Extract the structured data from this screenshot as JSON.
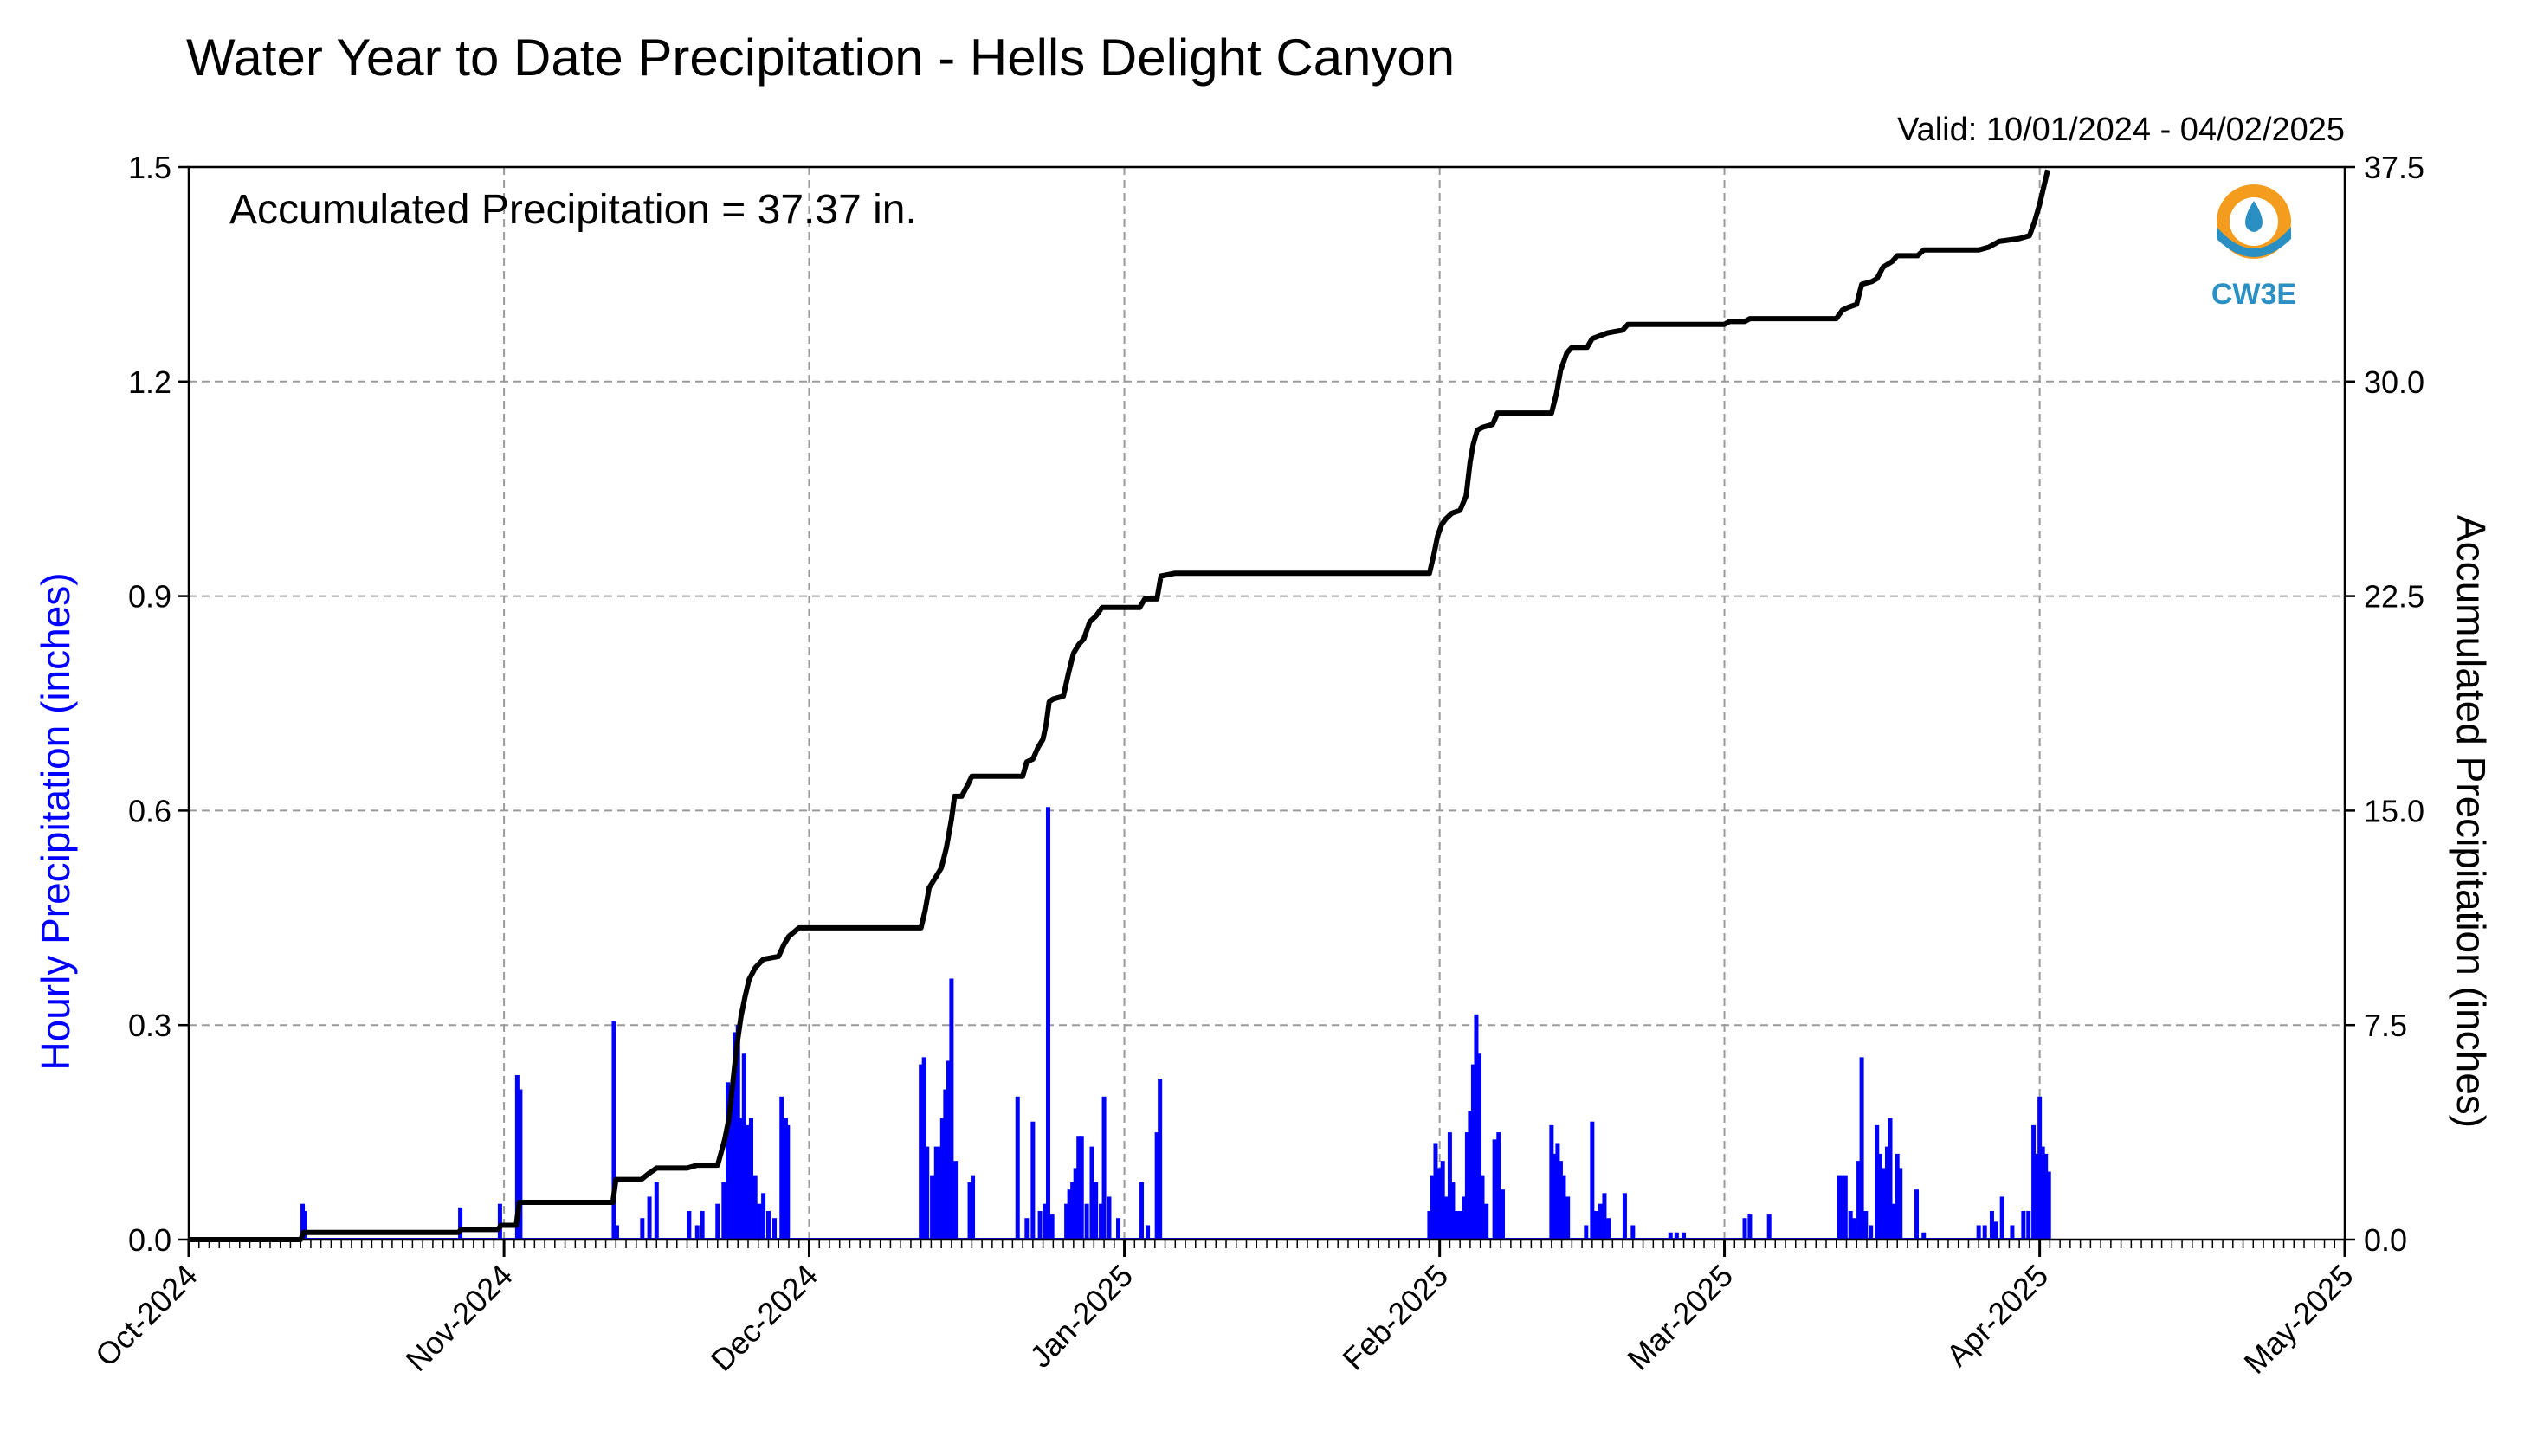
{
  "chart_data": {
    "type": "bar",
    "title": "Water Year to Date Precipitation - Hells Delight Canyon",
    "valid_label": "Valid: 10/01/2024 - 04/02/2025",
    "annotation": "Accumulated Precipitation = 37.37 in.",
    "logo_text": "CW3E",
    "ylabel_left": "Hourly Precipitation (inches)",
    "ylabel_right": "Accumulated Precipitation (inches)",
    "ylim_left": [
      0,
      1.5
    ],
    "ylim_right": [
      0,
      37.5
    ],
    "yticks_left": [
      "0.0",
      "0.3",
      "0.6",
      "0.9",
      "1.2",
      "1.5"
    ],
    "yticks_right": [
      "0.0",
      "7.5",
      "15.0",
      "22.5",
      "30.0",
      "37.5"
    ],
    "xlim_days": [
      0,
      212
    ],
    "xticks": [
      {
        "label": "Oct-2024",
        "day": 0
      },
      {
        "label": "Nov-2024",
        "day": 31
      },
      {
        "label": "Dec-2024",
        "day": 61
      },
      {
        "label": "Jan-2025",
        "day": 92
      },
      {
        "label": "Feb-2025",
        "day": 123
      },
      {
        "label": "Mar-2025",
        "day": 151
      },
      {
        "label": "Apr-2025",
        "day": 182
      },
      {
        "label": "May-2025",
        "day": 212
      }
    ],
    "grid": true,
    "colors": {
      "hourly": "#0000ff",
      "accumulated": "#000000",
      "grid": "#9a9a9a",
      "logo_orange": "#f39c1e",
      "logo_blue": "#2a8fc2"
    },
    "series": [
      {
        "name": "Hourly Precipitation (inches)",
        "kind": "bar",
        "points": [
          [
            11.2,
            0.05
          ],
          [
            11.4,
            0.04
          ],
          [
            26.7,
            0.045
          ],
          [
            30.6,
            0.05
          ],
          [
            32.3,
            0.23
          ],
          [
            32.6,
            0.21
          ],
          [
            41.8,
            0.305
          ],
          [
            42.1,
            0.02
          ],
          [
            44.6,
            0.03
          ],
          [
            45.3,
            0.06
          ],
          [
            46.0,
            0.08
          ],
          [
            49.2,
            0.04
          ],
          [
            50.0,
            0.02
          ],
          [
            50.5,
            0.04
          ],
          [
            52.0,
            0.05
          ],
          [
            52.6,
            0.08
          ],
          [
            53.0,
            0.22
          ],
          [
            53.3,
            0.21
          ],
          [
            53.7,
            0.29
          ],
          [
            54.0,
            0.3
          ],
          [
            54.3,
            0.17
          ],
          [
            54.6,
            0.26
          ],
          [
            54.9,
            0.16
          ],
          [
            55.3,
            0.17
          ],
          [
            55.7,
            0.09
          ],
          [
            56.1,
            0.05
          ],
          [
            56.5,
            0.065
          ],
          [
            57.0,
            0.04
          ],
          [
            57.6,
            0.03
          ],
          [
            58.3,
            0.2
          ],
          [
            58.7,
            0.17
          ],
          [
            58.9,
            0.16
          ],
          [
            72.0,
            0.245
          ],
          [
            72.3,
            0.255
          ],
          [
            72.6,
            0.13
          ],
          [
            73.1,
            0.09
          ],
          [
            73.5,
            0.13
          ],
          [
            73.9,
            0.13
          ],
          [
            74.1,
            0.17
          ],
          [
            74.4,
            0.21
          ],
          [
            74.7,
            0.25
          ],
          [
            75.0,
            0.365
          ],
          [
            75.4,
            0.11
          ],
          [
            76.8,
            0.08
          ],
          [
            77.1,
            0.09
          ],
          [
            81.5,
            0.2
          ],
          [
            82.4,
            0.03
          ],
          [
            83.0,
            0.165
          ],
          [
            83.7,
            0.04
          ],
          [
            84.2,
            0.05
          ],
          [
            84.5,
            0.605
          ],
          [
            84.9,
            0.035
          ],
          [
            86.3,
            0.05
          ],
          [
            86.6,
            0.07
          ],
          [
            86.9,
            0.08
          ],
          [
            87.2,
            0.1
          ],
          [
            87.5,
            0.145
          ],
          [
            87.8,
            0.145
          ],
          [
            88.3,
            0.05
          ],
          [
            88.8,
            0.13
          ],
          [
            89.2,
            0.08
          ],
          [
            89.7,
            0.05
          ],
          [
            90.0,
            0.2
          ],
          [
            90.5,
            0.06
          ],
          [
            91.4,
            0.03
          ],
          [
            93.7,
            0.08
          ],
          [
            94.3,
            0.02
          ],
          [
            95.2,
            0.15
          ],
          [
            95.5,
            0.225
          ],
          [
            122.0,
            0.04
          ],
          [
            122.3,
            0.09
          ],
          [
            122.6,
            0.135
          ],
          [
            122.9,
            0.1
          ],
          [
            123.3,
            0.11
          ],
          [
            123.6,
            0.06
          ],
          [
            124.0,
            0.15
          ],
          [
            124.3,
            0.08
          ],
          [
            124.6,
            0.04
          ],
          [
            125.0,
            0.04
          ],
          [
            125.4,
            0.06
          ],
          [
            125.7,
            0.15
          ],
          [
            126.0,
            0.18
          ],
          [
            126.3,
            0.245
          ],
          [
            126.6,
            0.315
          ],
          [
            126.9,
            0.26
          ],
          [
            127.2,
            0.09
          ],
          [
            127.6,
            0.05
          ],
          [
            128.4,
            0.14
          ],
          [
            128.8,
            0.15
          ],
          [
            129.2,
            0.07
          ],
          [
            134.0,
            0.16
          ],
          [
            134.3,
            0.12
          ],
          [
            134.6,
            0.135
          ],
          [
            134.9,
            0.11
          ],
          [
            135.2,
            0.09
          ],
          [
            135.6,
            0.06
          ],
          [
            137.4,
            0.02
          ],
          [
            138.0,
            0.165
          ],
          [
            138.4,
            0.04
          ],
          [
            138.8,
            0.05
          ],
          [
            139.2,
            0.065
          ],
          [
            139.6,
            0.03
          ],
          [
            141.2,
            0.065
          ],
          [
            142.0,
            0.02
          ],
          [
            145.7,
            0.01
          ],
          [
            146.3,
            0.01
          ],
          [
            147.0,
            0.01
          ],
          [
            153.0,
            0.03
          ],
          [
            153.5,
            0.035
          ],
          [
            155.4,
            0.035
          ],
          [
            162.3,
            0.09
          ],
          [
            162.6,
            0.09
          ],
          [
            162.9,
            0.09
          ],
          [
            163.4,
            0.04
          ],
          [
            163.8,
            0.03
          ],
          [
            164.2,
            0.11
          ],
          [
            164.5,
            0.255
          ],
          [
            164.9,
            0.04
          ],
          [
            165.4,
            0.02
          ],
          [
            166.0,
            0.16
          ],
          [
            166.3,
            0.12
          ],
          [
            166.6,
            0.1
          ],
          [
            167.0,
            0.13
          ],
          [
            167.3,
            0.17
          ],
          [
            167.7,
            0.05
          ],
          [
            168.0,
            0.12
          ],
          [
            168.3,
            0.1
          ],
          [
            169.9,
            0.07
          ],
          [
            170.6,
            0.01
          ],
          [
            176.0,
            0.02
          ],
          [
            176.6,
            0.02
          ],
          [
            177.3,
            0.04
          ],
          [
            177.7,
            0.025
          ],
          [
            178.3,
            0.06
          ],
          [
            179.3,
            0.02
          ],
          [
            180.4,
            0.04
          ],
          [
            180.9,
            0.04
          ],
          [
            181.4,
            0.16
          ],
          [
            181.8,
            0.12
          ],
          [
            182.0,
            0.2
          ],
          [
            182.3,
            0.13
          ],
          [
            182.6,
            0.12
          ],
          [
            182.9,
            0.095
          ]
        ]
      },
      {
        "name": "Accumulated Precipitation (inches)",
        "kind": "line",
        "points": [
          [
            0,
            0
          ],
          [
            11.0,
            0
          ],
          [
            11.3,
            0.25
          ],
          [
            26.5,
            0.25
          ],
          [
            26.8,
            0.35
          ],
          [
            30.4,
            0.35
          ],
          [
            30.7,
            0.5
          ],
          [
            32.2,
            0.5
          ],
          [
            32.5,
            1.3
          ],
          [
            41.7,
            1.3
          ],
          [
            42.0,
            2.1
          ],
          [
            44.5,
            2.1
          ],
          [
            45.2,
            2.3
          ],
          [
            46.0,
            2.5
          ],
          [
            49.0,
            2.5
          ],
          [
            50.0,
            2.6
          ],
          [
            52.0,
            2.6
          ],
          [
            52.7,
            3.5
          ],
          [
            53.1,
            4.2
          ],
          [
            53.5,
            5.5
          ],
          [
            53.9,
            6.8
          ],
          [
            54.3,
            7.8
          ],
          [
            54.7,
            8.5
          ],
          [
            55.1,
            9.1
          ],
          [
            55.7,
            9.5
          ],
          [
            56.5,
            9.8
          ],
          [
            58.0,
            9.9
          ],
          [
            58.5,
            10.3
          ],
          [
            59.0,
            10.6
          ],
          [
            60.0,
            10.9
          ],
          [
            72.0,
            10.9
          ],
          [
            72.4,
            11.5
          ],
          [
            72.8,
            12.3
          ],
          [
            73.5,
            12.7
          ],
          [
            74.0,
            13.0
          ],
          [
            74.5,
            13.7
          ],
          [
            75.0,
            14.7
          ],
          [
            75.3,
            15.5
          ],
          [
            76.0,
            15.5
          ],
          [
            76.6,
            15.9
          ],
          [
            77.0,
            16.2
          ],
          [
            82.0,
            16.2
          ],
          [
            82.4,
            16.7
          ],
          [
            83.0,
            16.8
          ],
          [
            83.5,
            17.2
          ],
          [
            84.0,
            17.5
          ],
          [
            84.3,
            18.0
          ],
          [
            84.6,
            18.8
          ],
          [
            85.0,
            18.9
          ],
          [
            86.0,
            19.0
          ],
          [
            86.5,
            19.8
          ],
          [
            87.0,
            20.5
          ],
          [
            87.5,
            20.8
          ],
          [
            88.0,
            21.0
          ],
          [
            88.6,
            21.6
          ],
          [
            89.2,
            21.8
          ],
          [
            89.8,
            22.1
          ],
          [
            93.5,
            22.1
          ],
          [
            94.0,
            22.4
          ],
          [
            95.2,
            22.4
          ],
          [
            95.6,
            23.2
          ],
          [
            97.0,
            23.3
          ],
          [
            122.0,
            23.3
          ],
          [
            122.4,
            23.9
          ],
          [
            122.8,
            24.6
          ],
          [
            123.2,
            25.0
          ],
          [
            123.6,
            25.2
          ],
          [
            124.2,
            25.4
          ],
          [
            125.0,
            25.5
          ],
          [
            125.6,
            26.0
          ],
          [
            126.0,
            27.2
          ],
          [
            126.3,
            27.8
          ],
          [
            126.7,
            28.3
          ],
          [
            127.2,
            28.4
          ],
          [
            128.2,
            28.5
          ],
          [
            128.7,
            28.9
          ],
          [
            134.0,
            28.9
          ],
          [
            134.5,
            29.6
          ],
          [
            134.9,
            30.4
          ],
          [
            135.5,
            31.0
          ],
          [
            136.0,
            31.2
          ],
          [
            137.5,
            31.2
          ],
          [
            138.0,
            31.5
          ],
          [
            139.5,
            31.7
          ],
          [
            141.0,
            31.8
          ],
          [
            141.5,
            32.0
          ],
          [
            151.0,
            32.0
          ],
          [
            151.5,
            32.1
          ],
          [
            153.0,
            32.1
          ],
          [
            153.5,
            32.2
          ],
          [
            162.0,
            32.2
          ],
          [
            162.6,
            32.5
          ],
          [
            163.2,
            32.6
          ],
          [
            164.0,
            32.7
          ],
          [
            164.5,
            33.4
          ],
          [
            165.5,
            33.5
          ],
          [
            166.0,
            33.6
          ],
          [
            166.6,
            34.0
          ],
          [
            167.5,
            34.2
          ],
          [
            168.0,
            34.4
          ],
          [
            170.0,
            34.4
          ],
          [
            170.6,
            34.6
          ],
          [
            176.0,
            34.6
          ],
          [
            177.0,
            34.7
          ],
          [
            178.0,
            34.9
          ],
          [
            180.0,
            35.0
          ],
          [
            181.0,
            35.1
          ],
          [
            181.5,
            35.6
          ],
          [
            182.0,
            36.2
          ],
          [
            182.4,
            36.8
          ],
          [
            182.8,
            37.4
          ]
        ]
      }
    ]
  }
}
